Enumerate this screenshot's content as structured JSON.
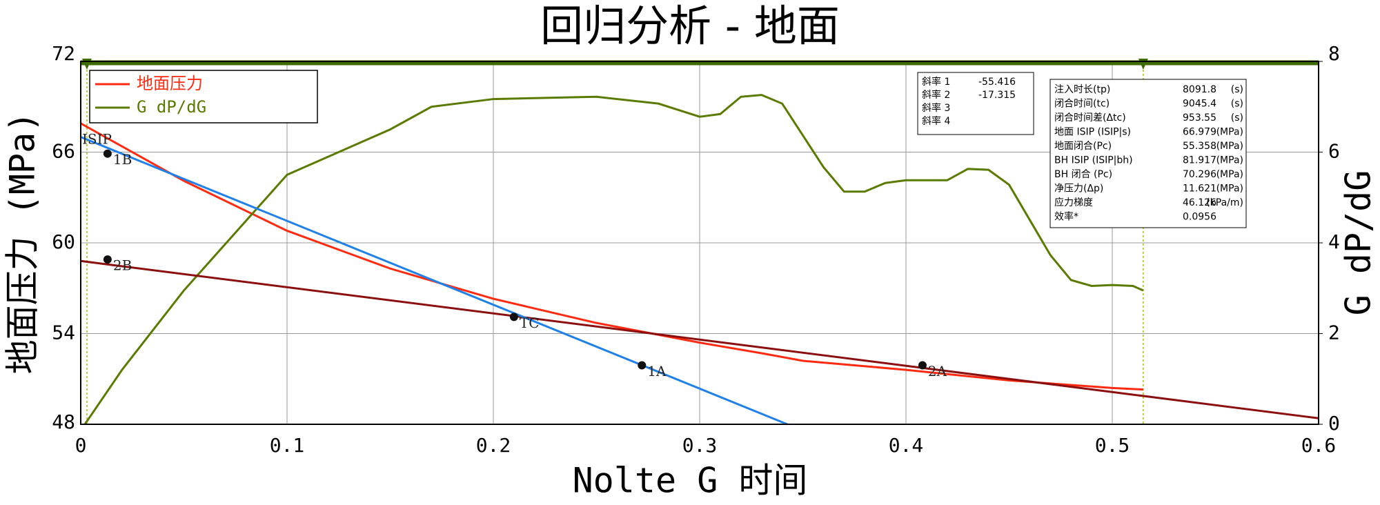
{
  "chart_data": {
    "type": "line",
    "title": "回归分析 - 地面",
    "x_label": "Nolte G 时间",
    "y_label": "地面压力 (MPa)",
    "y2_label": "G dP/dG",
    "xlim": [
      0,
      0.6
    ],
    "xticks": [
      0,
      0.1,
      0.2,
      0.3,
      0.4,
      0.5,
      0.6
    ],
    "ylim": [
      48,
      72
    ],
    "yticks": [
      48,
      54,
      60,
      66,
      72
    ],
    "y2lim": [
      0,
      8
    ],
    "y2ticks": [
      0,
      2,
      4,
      6,
      8
    ],
    "grid": true,
    "legend": "upper left",
    "series": [
      {
        "name": "地面压力",
        "color": "#ff2a10",
        "x": [
          0,
          0.05,
          0.1,
          0.15,
          0.2,
          0.25,
          0.3,
          0.33,
          0.35,
          0.4,
          0.45,
          0.5,
          0.515
        ],
        "values": [
          67.9,
          64.1,
          60.8,
          58.3,
          56.3,
          54.7,
          53.4,
          52.7,
          52.2,
          51.6,
          50.9,
          50.4,
          50.3
        ]
      },
      {
        "name": "G dP/dG",
        "color": "#5a7a00",
        "axis": "y2",
        "x": [
          0.002,
          0.02,
          0.05,
          0.1,
          0.15,
          0.17,
          0.2,
          0.25,
          0.28,
          0.3,
          0.31,
          0.32,
          0.33,
          0.34,
          0.36,
          0.37,
          0.38,
          0.39,
          0.4,
          0.42,
          0.43,
          0.44,
          0.45,
          0.47,
          0.48,
          0.49,
          0.5,
          0.51,
          0.515
        ],
        "values": [
          0.0,
          1.2,
          2.95,
          5.5,
          6.5,
          7.0,
          7.17,
          7.22,
          7.07,
          6.78,
          6.84,
          7.22,
          7.26,
          7.07,
          5.67,
          5.13,
          5.13,
          5.32,
          5.38,
          5.38,
          5.63,
          5.61,
          5.28,
          3.73,
          3.18,
          3.05,
          3.07,
          3.05,
          2.95
        ]
      },
      {
        "color": "#1e80e8",
        "x": [
          0,
          0.3425
        ],
        "values": [
          67.0,
          48.0
        ]
      },
      {
        "color": "#8b0f0f",
        "x": [
          0,
          0.6
        ],
        "values": [
          58.8,
          48.4
        ]
      }
    ],
    "points": [
      {
        "label": "ISIP",
        "x": 0,
        "y": 66.8
      },
      {
        "label": "1B",
        "x": 0.013,
        "y": 65.9
      },
      {
        "label": "2B",
        "x": 0.013,
        "y": 58.9
      },
      {
        "label": "TC",
        "x": 0.21,
        "y": 55.1
      },
      {
        "label": "1A",
        "x": 0.272,
        "y": 51.9
      },
      {
        "label": "2A",
        "x": 0.408,
        "y": 51.9
      }
    ],
    "markers": {
      "x": [
        0.003,
        0.515
      ],
      "color": "#3d6b00"
    },
    "slope_box": [
      {
        "label": "斜率 1",
        "value": -55.416
      },
      {
        "label": "斜率 2",
        "value": -17.315
      },
      {
        "label": "斜率 3"
      },
      {
        "label": "斜率 4"
      }
    ],
    "params": [
      {
        "label": "注入时长(tp)",
        "value": 8091.8,
        "unit": "(s)"
      },
      {
        "label": "闭合时间(tc)",
        "value": 9045.4,
        "unit": "(s)"
      },
      {
        "label": "闭合时间差(Δtc)",
        "value": 953.55,
        "unit": "(s)"
      },
      {
        "label": "地面 ISIP (ISIP|s)",
        "value": 66.979,
        "unit": "(MPa)"
      },
      {
        "label": "地面闭合(Pc)",
        "value": 55.358,
        "unit": "(MPa)"
      },
      {
        "label": "BH ISIP (ISIP|bh)",
        "value": 81.917,
        "unit": "(MPa)"
      },
      {
        "label": "BH 闭合 (Pc)",
        "value": 70.296,
        "unit": "(MPa)"
      },
      {
        "label": "净压力(Δp)",
        "value": 11.621,
        "unit": "(MPa)"
      },
      {
        "label": "应力梯度",
        "value": 46.126,
        "unit": "(kPa/m)"
      },
      {
        "label": "效率*",
        "value": 0.0956
      }
    ]
  }
}
